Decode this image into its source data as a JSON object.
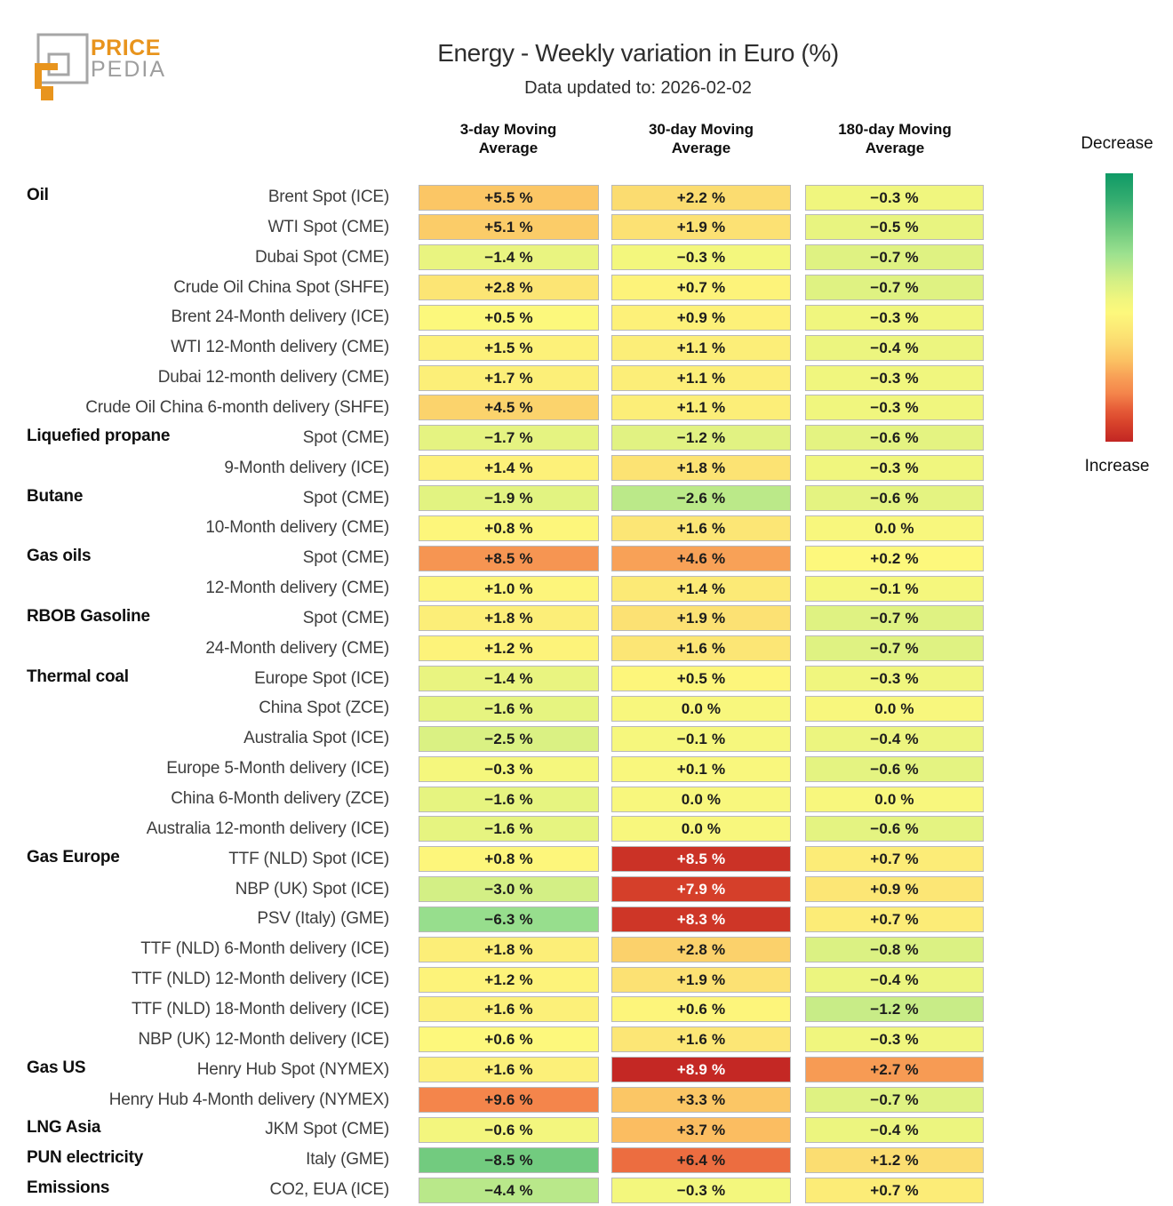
{
  "logo": {
    "price": "PRICE",
    "pedia": "PEDIA",
    "orange": "#e8941d",
    "gray": "#a6a6a6"
  },
  "chart_data": {
    "type": "heatmap",
    "title": "Energy - Weekly variation in Euro (%)",
    "subtitle": "Data updated to: 2026-02-02",
    "value_unit": "% weekly variation in Euro",
    "columns": [
      "3-day Moving Average",
      "30-day Moving Average",
      "180-day Moving Average"
    ],
    "legend_top": "Decrease",
    "legend_bottom": "Increase",
    "colormap": {
      "meaning": "green = decrease, yellow = 0, red = increase",
      "column_vmax": [
        15,
        9,
        5
      ],
      "white_text_threshold": 0.9,
      "stops": [
        [
          0.0,
          "#0f9a66"
        ],
        [
          0.1,
          "#35ad70"
        ],
        [
          0.2,
          "#69c77c"
        ],
        [
          0.3,
          "#9ce18f"
        ],
        [
          0.4,
          "#d3ef85"
        ],
        [
          0.47,
          "#f0f67e"
        ],
        [
          0.52,
          "#fdf87c"
        ],
        [
          0.58,
          "#fce976"
        ],
        [
          0.64,
          "#fbd76e"
        ],
        [
          0.7,
          "#fbc062"
        ],
        [
          0.76,
          "#f89f56"
        ],
        [
          0.82,
          "#f4854b"
        ],
        [
          0.88,
          "#e65c38"
        ],
        [
          0.93,
          "#d8432b"
        ],
        [
          1.0,
          "#c22623"
        ]
      ]
    },
    "rows": [
      {
        "category": "Oil",
        "label": "Brent Spot (ICE)",
        "values": [
          5.5,
          2.2,
          -0.3
        ],
        "display": [
          "+5.5 %",
          "+2.2 %",
          "−0.3 %"
        ]
      },
      {
        "category": "",
        "label": "WTI Spot (CME)",
        "values": [
          5.1,
          1.9,
          -0.5
        ],
        "display": [
          "+5.1 %",
          "+1.9 %",
          "−0.5 %"
        ]
      },
      {
        "category": "",
        "label": "Dubai Spot (CME)",
        "values": [
          -1.4,
          -0.3,
          -0.7
        ],
        "display": [
          "−1.4 %",
          "−0.3 %",
          "−0.7 %"
        ]
      },
      {
        "category": "",
        "label": "Crude Oil China Spot (SHFE)",
        "values": [
          2.8,
          0.7,
          -0.7
        ],
        "display": [
          "+2.8 %",
          "+0.7 %",
          "−0.7 %"
        ]
      },
      {
        "category": "",
        "label": "Brent 24-Month delivery (ICE)",
        "values": [
          0.5,
          0.9,
          -0.3
        ],
        "display": [
          "+0.5 %",
          "+0.9 %",
          "−0.3 %"
        ]
      },
      {
        "category": "",
        "label": "WTI 12-Month delivery (CME)",
        "values": [
          1.5,
          1.1,
          -0.4
        ],
        "display": [
          "+1.5 %",
          "+1.1 %",
          "−0.4 %"
        ]
      },
      {
        "category": "",
        "label": "Dubai 12-month delivery (CME)",
        "values": [
          1.7,
          1.1,
          -0.3
        ],
        "display": [
          "+1.7 %",
          "+1.1 %",
          "−0.3 %"
        ]
      },
      {
        "category": "",
        "label": "Crude Oil China 6-month delivery (SHFE)",
        "values": [
          4.5,
          1.1,
          -0.3
        ],
        "display": [
          "+4.5 %",
          "+1.1 %",
          "−0.3 %"
        ]
      },
      {
        "category": "Liquefied propane",
        "label": "Spot (CME)",
        "values": [
          -1.7,
          -1.2,
          -0.6
        ],
        "display": [
          "−1.7 %",
          "−1.2 %",
          "−0.6 %"
        ]
      },
      {
        "category": "",
        "label": "9-Month delivery (ICE)",
        "values": [
          1.4,
          1.8,
          -0.3
        ],
        "display": [
          "+1.4 %",
          "+1.8 %",
          "−0.3 %"
        ]
      },
      {
        "category": "Butane",
        "label": "Spot (CME)",
        "values": [
          -1.9,
          -2.6,
          -0.6
        ],
        "display": [
          "−1.9 %",
          "−2.6 %",
          "−0.6 %"
        ]
      },
      {
        "category": "",
        "label": "10-Month delivery (CME)",
        "values": [
          0.8,
          1.6,
          0.0
        ],
        "display": [
          "+0.8 %",
          "+1.6 %",
          "0.0 %"
        ]
      },
      {
        "category": "Gas oils",
        "label": "Spot (CME)",
        "values": [
          8.5,
          4.6,
          0.2
        ],
        "display": [
          "+8.5 %",
          "+4.6 %",
          "+0.2 %"
        ]
      },
      {
        "category": "",
        "label": "12-Month delivery (CME)",
        "values": [
          1.0,
          1.4,
          -0.1
        ],
        "display": [
          "+1.0 %",
          "+1.4 %",
          "−0.1 %"
        ]
      },
      {
        "category": "RBOB Gasoline",
        "label": "Spot (CME)",
        "values": [
          1.8,
          1.9,
          -0.7
        ],
        "display": [
          "+1.8 %",
          "+1.9 %",
          "−0.7 %"
        ]
      },
      {
        "category": "",
        "label": "24-Month delivery (CME)",
        "values": [
          1.2,
          1.6,
          -0.7
        ],
        "display": [
          "+1.2 %",
          "+1.6 %",
          "−0.7 %"
        ]
      },
      {
        "category": "Thermal coal",
        "label": "Europe Spot (ICE)",
        "values": [
          -1.4,
          0.5,
          -0.3
        ],
        "display": [
          "−1.4 %",
          "+0.5 %",
          "−0.3 %"
        ]
      },
      {
        "category": "",
        "label": "China Spot (ZCE)",
        "values": [
          -1.6,
          0.0,
          0.0
        ],
        "display": [
          "−1.6 %",
          "0.0 %",
          "0.0 %"
        ]
      },
      {
        "category": "",
        "label": "Australia Spot (ICE)",
        "values": [
          -2.5,
          -0.1,
          -0.4
        ],
        "display": [
          "−2.5 %",
          "−0.1 %",
          "−0.4 %"
        ]
      },
      {
        "category": "",
        "label": "Europe 5-Month delivery (ICE)",
        "values": [
          -0.3,
          0.1,
          -0.6
        ],
        "display": [
          "−0.3 %",
          "+0.1 %",
          "−0.6 %"
        ]
      },
      {
        "category": "",
        "label": "China 6-Month delivery (ZCE)",
        "values": [
          -1.6,
          0.0,
          0.0
        ],
        "display": [
          "−1.6 %",
          "0.0 %",
          "0.0 %"
        ]
      },
      {
        "category": "",
        "label": "Australia 12-month delivery (ICE)",
        "values": [
          -1.6,
          0.0,
          -0.6
        ],
        "display": [
          "−1.6 %",
          "0.0 %",
          "−0.6 %"
        ]
      },
      {
        "category": "Gas Europe",
        "label": "TTF (NLD) Spot (ICE)",
        "values": [
          0.8,
          8.5,
          0.7
        ],
        "display": [
          "+0.8 %",
          "+8.5 %",
          "+0.7 %"
        ]
      },
      {
        "category": "",
        "label": "NBP (UK) Spot (ICE)",
        "values": [
          -3.0,
          7.9,
          0.9
        ],
        "display": [
          "−3.0 %",
          "+7.9 %",
          "+0.9 %"
        ]
      },
      {
        "category": "",
        "label": "PSV (Italy) (GME)",
        "values": [
          -6.3,
          8.3,
          0.7
        ],
        "display": [
          "−6.3 %",
          "+8.3 %",
          "+0.7 %"
        ]
      },
      {
        "category": "",
        "label": "TTF (NLD) 6-Month delivery (ICE)",
        "values": [
          1.8,
          2.8,
          -0.8
        ],
        "display": [
          "+1.8 %",
          "+2.8 %",
          "−0.8 %"
        ]
      },
      {
        "category": "",
        "label": "TTF (NLD) 12-Month delivery (ICE)",
        "values": [
          1.2,
          1.9,
          -0.4
        ],
        "display": [
          "+1.2 %",
          "+1.9 %",
          "−0.4 %"
        ]
      },
      {
        "category": "",
        "label": "TTF (NLD) 18-Month delivery (ICE)",
        "values": [
          1.6,
          0.6,
          -1.2
        ],
        "display": [
          "+1.6 %",
          "+0.6 %",
          "−1.2 %"
        ]
      },
      {
        "category": "",
        "label": "NBP (UK) 12-Month delivery (ICE)",
        "values": [
          0.6,
          1.6,
          -0.3
        ],
        "display": [
          "+0.6 %",
          "+1.6 %",
          "−0.3 %"
        ]
      },
      {
        "category": "Gas US",
        "label": "Henry Hub Spot (NYMEX)",
        "values": [
          1.6,
          8.9,
          2.7
        ],
        "display": [
          "+1.6 %",
          "+8.9 %",
          "+2.7 %"
        ]
      },
      {
        "category": "",
        "label": "Henry Hub 4-Month delivery (NYMEX)",
        "values": [
          9.6,
          3.3,
          -0.7
        ],
        "display": [
          "+9.6 %",
          "+3.3 %",
          "−0.7 %"
        ]
      },
      {
        "category": "LNG Asia",
        "label": "JKM Spot (CME)",
        "values": [
          -0.6,
          3.7,
          -0.4
        ],
        "display": [
          "−0.6 %",
          "+3.7 %",
          "−0.4 %"
        ]
      },
      {
        "category": "PUN electricity",
        "label": "Italy (GME)",
        "values": [
          -8.5,
          6.4,
          1.2
        ],
        "display": [
          "−8.5 %",
          "+6.4 %",
          "+1.2 %"
        ]
      },
      {
        "category": "Emissions",
        "label": "CO2, EUA (ICE)",
        "values": [
          -4.4,
          -0.3,
          0.7
        ],
        "display": [
          "−4.4 %",
          "−0.3 %",
          "+0.7 %"
        ]
      }
    ]
  }
}
